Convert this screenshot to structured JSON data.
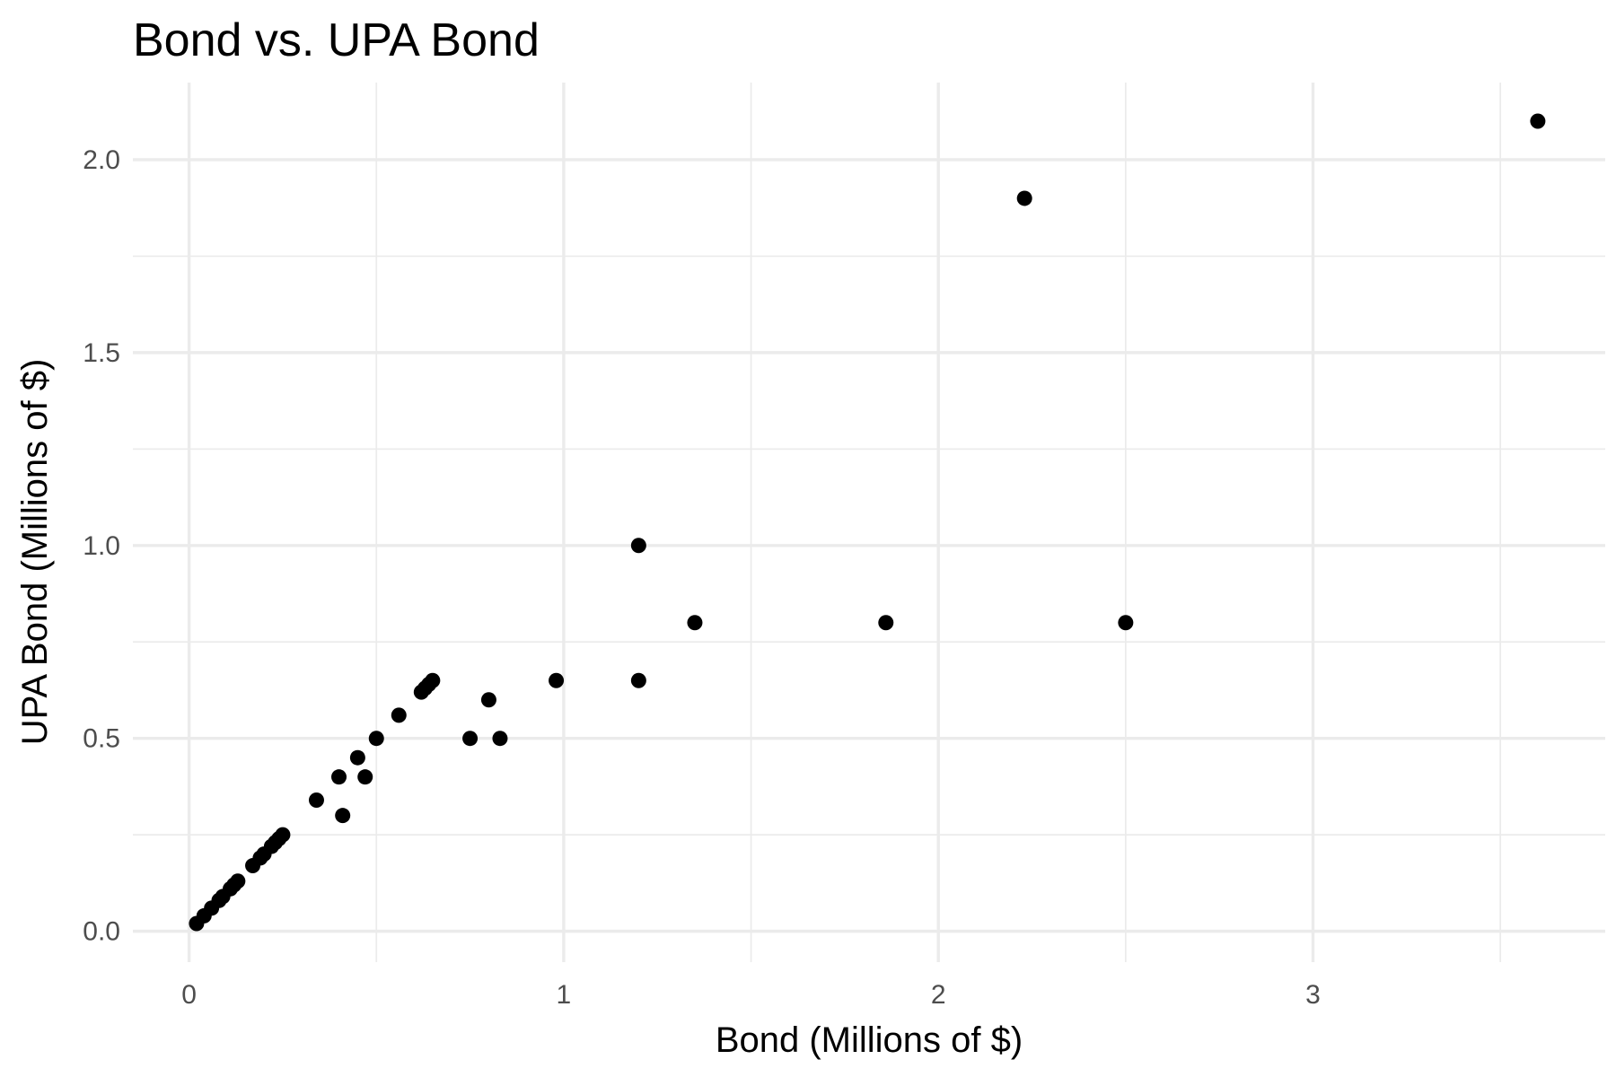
{
  "chart_data": {
    "type": "scatter",
    "title": "Bond vs. UPA Bond",
    "xlabel": "Bond (Millions of $)",
    "ylabel": "UPA Bond (Millions of $)",
    "xlim": [
      -0.15,
      3.78
    ],
    "ylim": [
      -0.08,
      2.2
    ],
    "xticks": [
      0,
      1,
      2,
      3
    ],
    "xtick_labels": [
      "0",
      "1",
      "2",
      "3"
    ],
    "xminor": [
      0.5,
      1.5,
      2.5,
      3.5
    ],
    "yticks": [
      0.0,
      0.5,
      1.0,
      1.5,
      2.0
    ],
    "ytick_labels": [
      "0.0",
      "0.5",
      "1.0",
      "1.5",
      "2.0"
    ],
    "yminor": [
      0.25,
      0.75,
      1.25,
      1.75
    ],
    "grid": true,
    "legend": "none",
    "point_color": "#000000",
    "points": [
      {
        "x": 0.02,
        "y": 0.02
      },
      {
        "x": 0.04,
        "y": 0.04
      },
      {
        "x": 0.06,
        "y": 0.06
      },
      {
        "x": 0.08,
        "y": 0.08
      },
      {
        "x": 0.09,
        "y": 0.09
      },
      {
        "x": 0.11,
        "y": 0.11
      },
      {
        "x": 0.12,
        "y": 0.12
      },
      {
        "x": 0.13,
        "y": 0.13
      },
      {
        "x": 0.17,
        "y": 0.17
      },
      {
        "x": 0.19,
        "y": 0.19
      },
      {
        "x": 0.2,
        "y": 0.2
      },
      {
        "x": 0.22,
        "y": 0.22
      },
      {
        "x": 0.23,
        "y": 0.23
      },
      {
        "x": 0.24,
        "y": 0.24
      },
      {
        "x": 0.25,
        "y": 0.25
      },
      {
        "x": 0.34,
        "y": 0.34
      },
      {
        "x": 0.4,
        "y": 0.4
      },
      {
        "x": 0.41,
        "y": 0.3
      },
      {
        "x": 0.45,
        "y": 0.45
      },
      {
        "x": 0.47,
        "y": 0.4
      },
      {
        "x": 0.5,
        "y": 0.5
      },
      {
        "x": 0.56,
        "y": 0.56
      },
      {
        "x": 0.62,
        "y": 0.62
      },
      {
        "x": 0.63,
        "y": 0.63
      },
      {
        "x": 0.64,
        "y": 0.64
      },
      {
        "x": 0.65,
        "y": 0.65
      },
      {
        "x": 0.75,
        "y": 0.5
      },
      {
        "x": 0.8,
        "y": 0.6
      },
      {
        "x": 0.83,
        "y": 0.5
      },
      {
        "x": 0.98,
        "y": 0.65
      },
      {
        "x": 1.2,
        "y": 1.0
      },
      {
        "x": 1.2,
        "y": 0.65
      },
      {
        "x": 1.35,
        "y": 0.8
      },
      {
        "x": 1.86,
        "y": 0.8
      },
      {
        "x": 2.23,
        "y": 1.9
      },
      {
        "x": 2.5,
        "y": 0.8
      },
      {
        "x": 3.6,
        "y": 2.1
      }
    ]
  }
}
